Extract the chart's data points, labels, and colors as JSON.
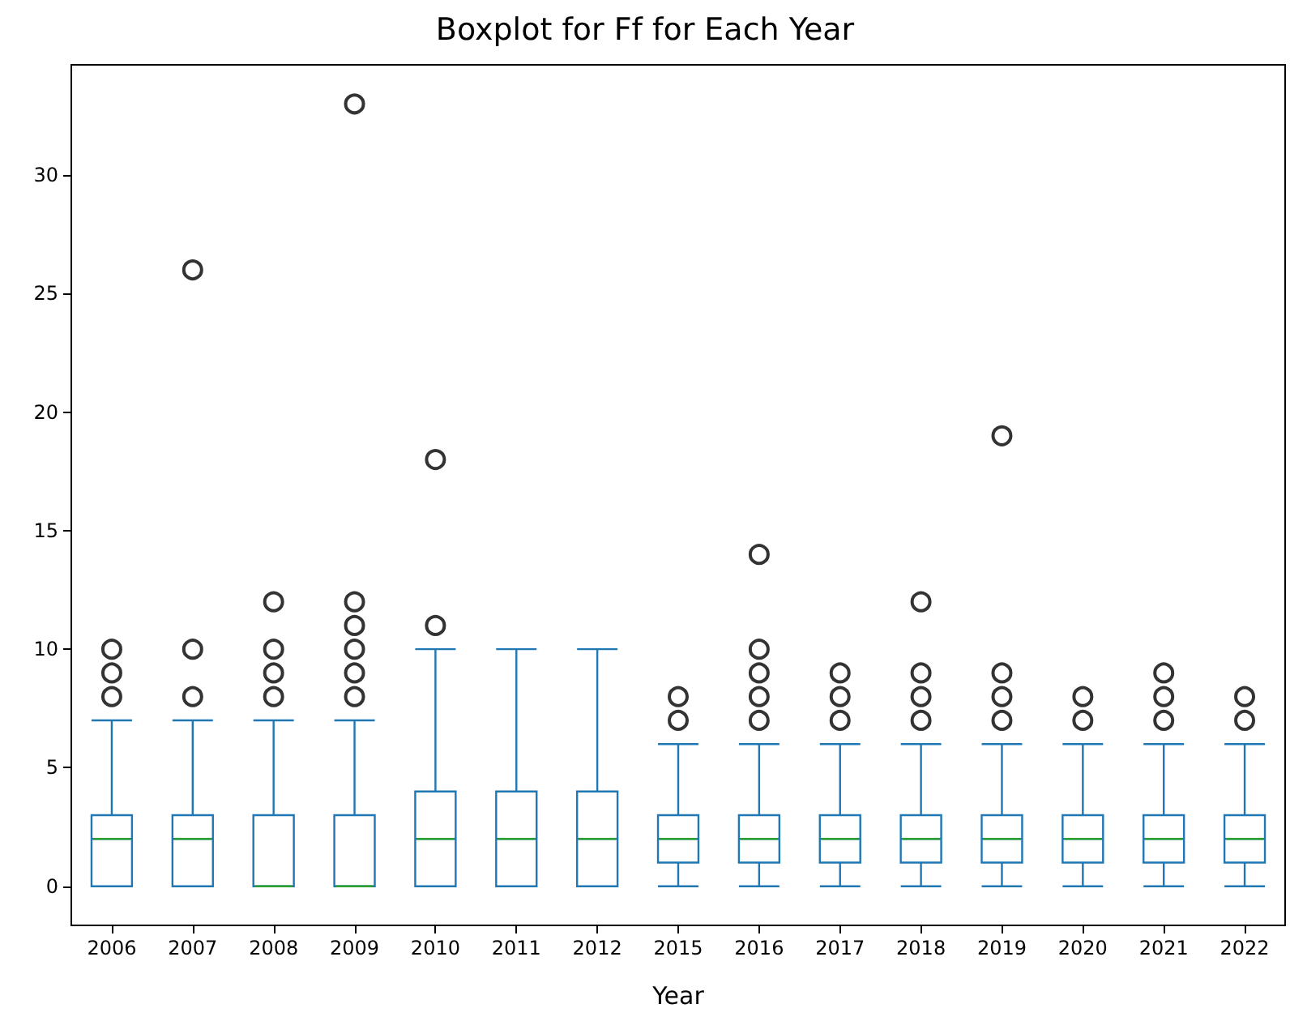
{
  "chart_data": {
    "type": "box",
    "title": "Boxplot for Ff for Each Year",
    "xlabel": "Year",
    "categories": [
      "2006",
      "2007",
      "2008",
      "2009",
      "2010",
      "2011",
      "2012",
      "2015",
      "2016",
      "2017",
      "2018",
      "2019",
      "2020",
      "2021",
      "2022"
    ],
    "ylim": [
      -1.65,
      34.65
    ],
    "yticks": [
      0,
      5,
      10,
      15,
      20,
      25,
      30
    ],
    "grid": false,
    "marker": "circle",
    "series": [
      {
        "color": "#1f77b4",
        "boxes": [
          {
            "low": 0,
            "q1": 0,
            "median": 2,
            "q3": 3,
            "high": 7,
            "outliers": [
              8,
              9,
              10
            ]
          },
          {
            "low": 0,
            "q1": 0,
            "median": 2,
            "q3": 3,
            "high": 7,
            "outliers": [
              8,
              10,
              26
            ]
          },
          {
            "low": 0,
            "q1": 0,
            "median": 0,
            "q3": 3,
            "high": 7,
            "outliers": [
              8,
              9,
              10,
              12
            ]
          },
          {
            "low": 0,
            "q1": 0,
            "median": 0,
            "q3": 3,
            "high": 7,
            "outliers": [
              8,
              9,
              10,
              11,
              12,
              33
            ]
          },
          {
            "low": 0,
            "q1": 0,
            "median": 2,
            "q3": 4,
            "high": 10,
            "outliers": [
              11,
              18
            ]
          },
          {
            "low": 0,
            "q1": 0,
            "median": 2,
            "q3": 4,
            "high": 10
          },
          {
            "low": 0,
            "q1": 0,
            "median": 2,
            "q3": 4,
            "high": 10
          },
          {
            "low": 0,
            "q1": 1,
            "median": 2,
            "q3": 3,
            "high": 6,
            "outliers": [
              7,
              8
            ]
          },
          {
            "low": 0,
            "q1": 1,
            "median": 2,
            "q3": 3,
            "high": 6,
            "outliers": [
              7,
              8,
              9,
              10,
              14
            ]
          },
          {
            "low": 0,
            "q1": 1,
            "median": 2,
            "q3": 3,
            "high": 6,
            "outliers": [
              7,
              8,
              9
            ]
          },
          {
            "low": 0,
            "q1": 1,
            "median": 2,
            "q3": 3,
            "high": 6,
            "outliers": [
              7,
              8,
              9,
              12
            ]
          },
          {
            "low": 0,
            "q1": 1,
            "median": 2,
            "q3": 3,
            "high": 6,
            "outliers": [
              7,
              8,
              9,
              19
            ]
          },
          {
            "low": 0,
            "q1": 1,
            "median": 2,
            "q3": 3,
            "high": 6,
            "outliers": [
              7,
              8
            ]
          },
          {
            "low": 0,
            "q1": 1,
            "median": 2,
            "q3": 3,
            "high": 6,
            "outliers": [
              7,
              8,
              9
            ]
          },
          {
            "low": 0,
            "q1": 1,
            "median": 2,
            "q3": 3,
            "high": 6,
            "outliers": [
              7,
              8
            ]
          }
        ]
      }
    ]
  }
}
